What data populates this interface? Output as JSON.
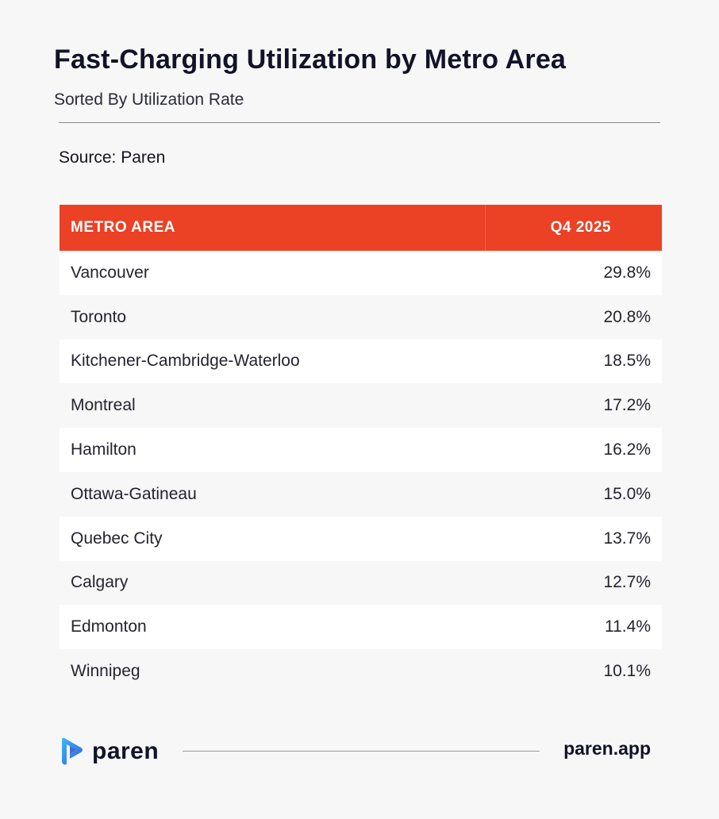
{
  "header": {
    "title": "Fast-Charging Utilization by Metro Area",
    "subtitle": "Sorted By Utilization Rate",
    "source": "Source: Paren"
  },
  "chart_data": {
    "type": "table",
    "columns": [
      "METRO AREA",
      "Q4 2025"
    ],
    "rows": [
      {
        "metro": "Vancouver",
        "value": "29.8%"
      },
      {
        "metro": "Toronto",
        "value": "20.8%"
      },
      {
        "metro": "Kitchener-Cambridge-Waterloo",
        "value": "18.5%"
      },
      {
        "metro": "Montreal",
        "value": "17.2%"
      },
      {
        "metro": "Hamilton",
        "value": "16.2%"
      },
      {
        "metro": "Ottawa-Gatineau",
        "value": "15.0%"
      },
      {
        "metro": "Quebec City",
        "value": "13.7%"
      },
      {
        "metro": "Calgary",
        "value": "12.7%"
      },
      {
        "metro": "Edmonton",
        "value": "11.4%"
      },
      {
        "metro": "Winnipeg",
        "value": "10.1%"
      }
    ]
  },
  "footer": {
    "logo_text": "paren",
    "url": "paren.app"
  },
  "colors": {
    "header_bg": "#eb4125",
    "logo_blue": "#2f6cf2",
    "logo_cyan": "#3fb8f0"
  }
}
